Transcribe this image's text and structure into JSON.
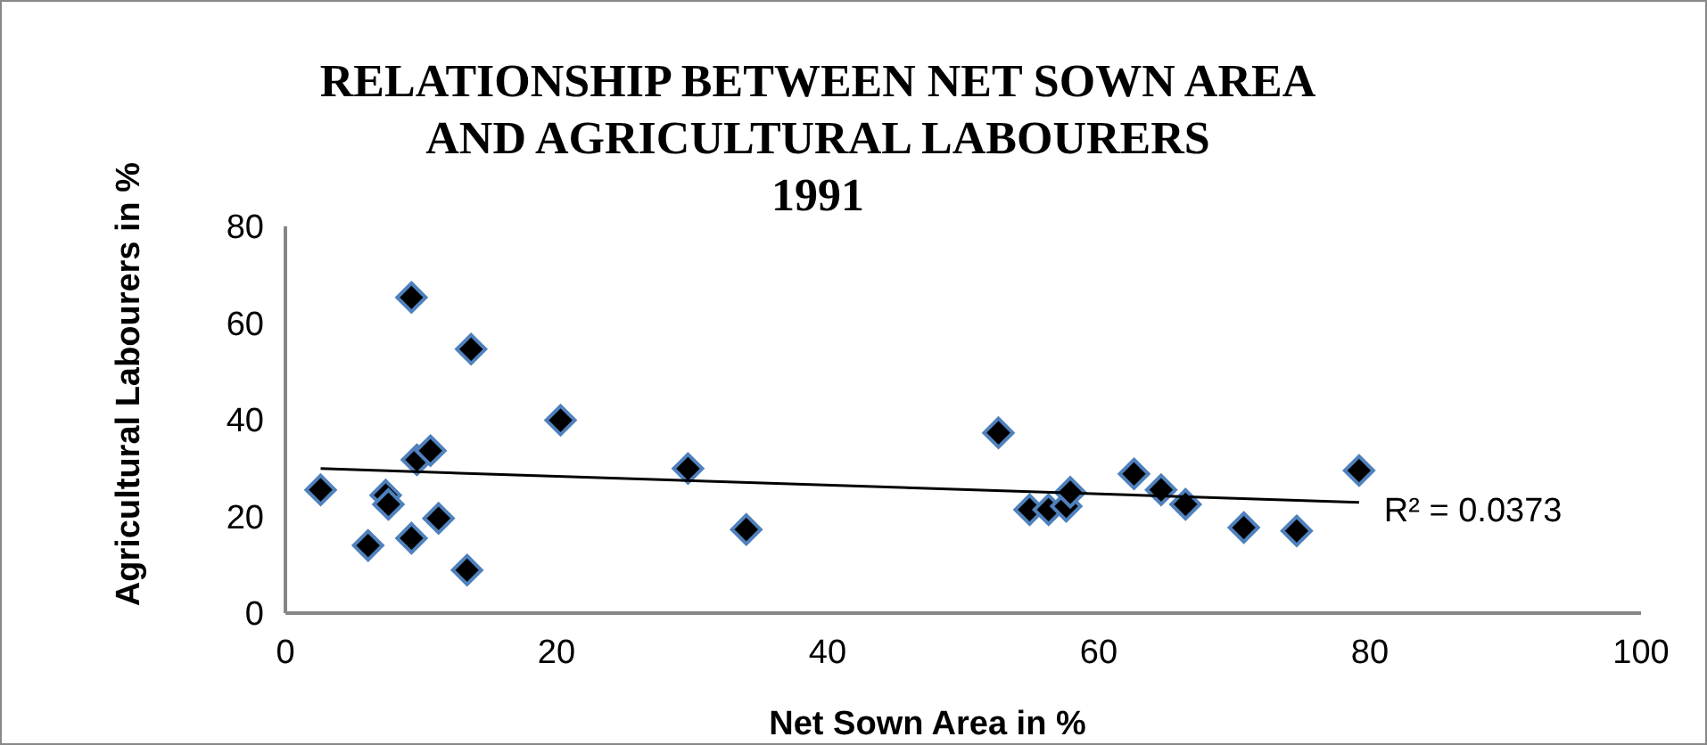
{
  "chart_data": {
    "type": "scatter",
    "title": "RELATIONSHIP BETWEEN NET SOWN AREA\nAND AGRICULTURAL LABOURERS\n1991",
    "xlabel": "Net Sown Area in %",
    "ylabel": "Agricultural Labourers in %",
    "xlim": [
      0,
      100
    ],
    "xticks": [
      0,
      20,
      40,
      60,
      80,
      100
    ],
    "ylim": [
      0,
      80
    ],
    "yticks": [
      0,
      20,
      40,
      60,
      80
    ],
    "grid": false,
    "series": [
      {
        "marker": "diamond",
        "color": "#000000",
        "x": [
          2.6,
          6.1,
          7.4,
          7.6,
          9.3,
          9.3,
          9.7,
          10.7,
          11.3,
          13.4,
          13.7,
          20.3,
          29.7,
          34,
          52.6,
          54.9,
          56.3,
          57.6,
          57.9,
          62.6,
          64.6,
          66.4,
          70.7,
          74.6,
          79.2
        ],
        "values": [
          25.5,
          14,
          24.4,
          22.5,
          15.5,
          65.3,
          31.7,
          33.6,
          19.6,
          8.9,
          54.6,
          39.9,
          29.9,
          17.3,
          37.3,
          21.4,
          21.4,
          22.1,
          25,
          28.8,
          25.5,
          22.5,
          17.7,
          17,
          29.5
        ]
      },
      {
        "type": "line",
        "marker": "none",
        "color": "#000000",
        "x": [
          2.6,
          79.2
        ],
        "values": [
          29.9,
          22.9
        ]
      }
    ],
    "annotations": [
      "R² = 0.0373"
    ]
  }
}
